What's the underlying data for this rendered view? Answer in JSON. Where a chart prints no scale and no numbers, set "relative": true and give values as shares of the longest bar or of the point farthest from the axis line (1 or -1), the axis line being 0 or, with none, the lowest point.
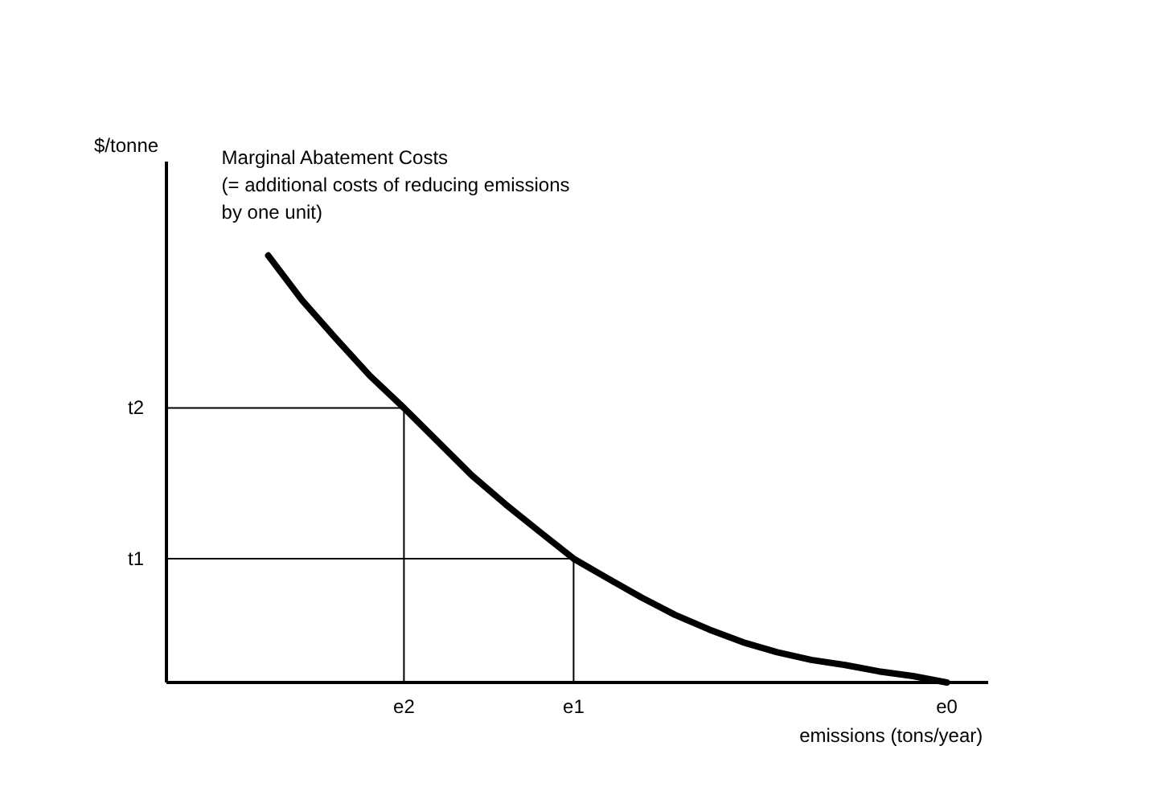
{
  "chart_data": {
    "type": "line",
    "relative": true,
    "xlabel": "emissions (tons/year)",
    "categories": [
      null,
      null,
      null,
      null,
      null,
      null,
      null,
      "e2",
      null,
      null,
      null,
      null,
      "e1",
      null,
      null,
      null,
      null,
      null,
      null,
      null,
      null,
      null,
      null,
      "e0"
    ],
    "annotations": [
      "$/tonne"
    ],
    "ref_lines": [
      {
        "axis": "y",
        "value": 0.643,
        "label": "t2"
      },
      {
        "axis": "y",
        "value": 0.29,
        "label": "t1"
      }
    ],
    "series": [
      {
        "name": "Marginal Abatement Costs\n(= additional costs of reducing emissions\nby one unit)",
        "color": "#000000",
        "values": [
          null,
          null,
          null,
          1.0,
          0.895,
          0.805,
          0.718,
          0.643,
          0.564,
          0.485,
          0.417,
          0.353,
          0.29,
          0.244,
          0.199,
          0.158,
          0.124,
          0.094,
          0.071,
          0.053,
          0.041,
          0.026,
          0.015,
          0.0
        ]
      }
    ]
  }
}
